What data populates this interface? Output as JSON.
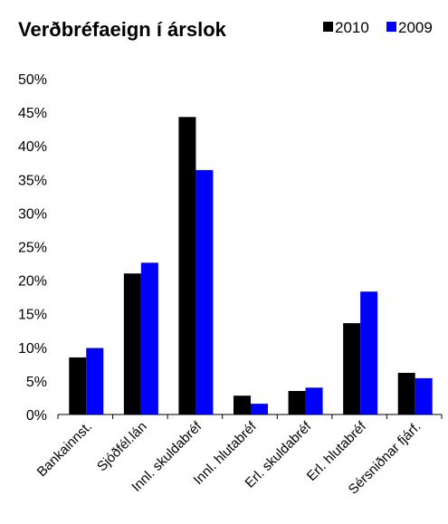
{
  "chart_data": {
    "type": "bar",
    "title": "Verðbréfaeign í árslok",
    "categories": [
      "Bankainnst.",
      "Sjóðfél.lán",
      "Innl. skuldabréf",
      "Innl. hlutabréf",
      "Erl. skuldabréf",
      "Erl. hlutabréf",
      "Sérsniðnar fjárf."
    ],
    "series": [
      {
        "name": "2010",
        "color": "#000000",
        "values": [
          8.5,
          21.0,
          44.3,
          2.8,
          3.5,
          13.6,
          6.2
        ]
      },
      {
        "name": "2009",
        "color": "#0000ff",
        "values": [
          9.9,
          22.6,
          36.4,
          1.6,
          4.0,
          18.3,
          5.4
        ]
      }
    ],
    "ylim": [
      0,
      50
    ],
    "yticks": [
      "0%",
      "5%",
      "10%",
      "15%",
      "20%",
      "25%",
      "30%",
      "35%",
      "40%",
      "45%",
      "50%"
    ],
    "ytick_values": [
      0,
      5,
      10,
      15,
      20,
      25,
      30,
      35,
      40,
      45,
      50
    ],
    "legend_position": "top-right",
    "grid": false,
    "xlabel": "",
    "ylabel": ""
  }
}
